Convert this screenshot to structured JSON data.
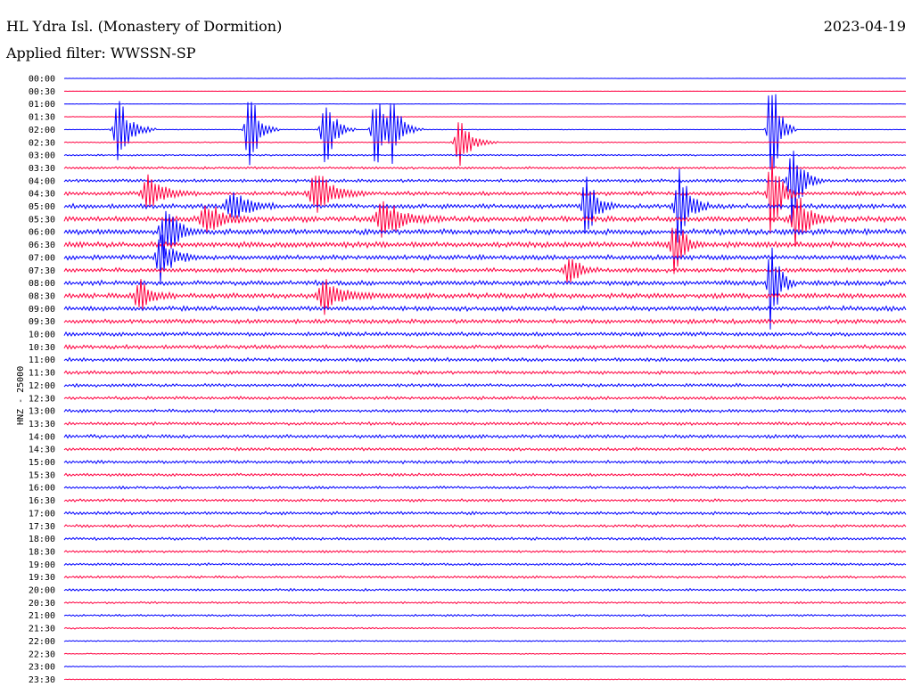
{
  "header": {
    "title": "HL Ydra Isl. (Monastery of Dormition)",
    "filter": "Applied filter: WWSSN-SP",
    "date": "2023-04-19",
    "ylabel": "HNZ - 25000"
  },
  "colors": {
    "trace_even": "#0000ff",
    "trace_odd": "#ff0040",
    "background": "#ffffff",
    "text": "#000000"
  },
  "chart_data": {
    "type": "line",
    "title": "HL Ydra Isl. (Monastery of Dormition)",
    "subtitle": "Applied filter: WWSSN-SP",
    "ylabel": "HNZ - 25000",
    "row_labels": [
      "00:00",
      "00:30",
      "01:00",
      "01:30",
      "02:00",
      "02:30",
      "03:00",
      "03:30",
      "04:00",
      "04:30",
      "05:00",
      "05:30",
      "06:00",
      "06:30",
      "07:00",
      "07:30",
      "08:00",
      "08:30",
      "09:00",
      "09:30",
      "10:00",
      "10:30",
      "11:00",
      "11:30",
      "12:00",
      "12:30",
      "13:00",
      "13:30",
      "14:00",
      "14:30",
      "15:00",
      "15:30",
      "16:00",
      "16:30",
      "17:00",
      "17:30",
      "18:00",
      "18:30",
      "19:00",
      "19:30",
      "20:00",
      "20:30",
      "21:00",
      "21:30",
      "22:00",
      "22:30",
      "23:00",
      "23:30"
    ],
    "row_noise": [
      0.03,
      0.03,
      0.05,
      0.05,
      0.08,
      0.12,
      0.2,
      0.3,
      0.4,
      0.5,
      0.6,
      0.7,
      0.7,
      0.7,
      0.6,
      0.55,
      0.6,
      0.65,
      0.6,
      0.55,
      0.5,
      0.5,
      0.45,
      0.45,
      0.4,
      0.4,
      0.4,
      0.4,
      0.45,
      0.4,
      0.4,
      0.35,
      0.35,
      0.35,
      0.4,
      0.35,
      0.35,
      0.3,
      0.3,
      0.3,
      0.3,
      0.25,
      0.25,
      0.2,
      0.15,
      0.12,
      0.1,
      0.1
    ],
    "events": [
      {
        "row": 4,
        "x": 0.065,
        "amp": 3.0,
        "width": 0.015
      },
      {
        "row": 9,
        "x": 0.1,
        "amp": 1.5,
        "width": 0.02
      },
      {
        "row": 12,
        "x": 0.12,
        "amp": 2.5,
        "width": 0.015
      },
      {
        "row": 14,
        "x": 0.115,
        "amp": 2.0,
        "width": 0.015
      },
      {
        "row": 17,
        "x": 0.09,
        "amp": 1.5,
        "width": 0.015
      },
      {
        "row": 4,
        "x": 0.22,
        "amp": 4.0,
        "width": 0.012
      },
      {
        "row": 10,
        "x": 0.2,
        "amp": 1.5,
        "width": 0.02
      },
      {
        "row": 11,
        "x": 0.17,
        "amp": 1.5,
        "width": 0.02
      },
      {
        "row": 4,
        "x": 0.31,
        "amp": 3.5,
        "width": 0.012
      },
      {
        "row": 9,
        "x": 0.3,
        "amp": 2.0,
        "width": 0.02
      },
      {
        "row": 17,
        "x": 0.31,
        "amp": 1.5,
        "width": 0.02
      },
      {
        "row": 4,
        "x": 0.37,
        "amp": 3.5,
        "width": 0.012
      },
      {
        "row": 4,
        "x": 0.39,
        "amp": 3.0,
        "width": 0.012
      },
      {
        "row": 11,
        "x": 0.38,
        "amp": 1.5,
        "width": 0.025
      },
      {
        "row": 5,
        "x": 0.47,
        "amp": 2.0,
        "width": 0.015
      },
      {
        "row": 10,
        "x": 0.62,
        "amp": 3.0,
        "width": 0.012
      },
      {
        "row": 15,
        "x": 0.6,
        "amp": 1.5,
        "width": 0.012
      },
      {
        "row": 10,
        "x": 0.73,
        "amp": 4.0,
        "width": 0.012
      },
      {
        "row": 13,
        "x": 0.725,
        "amp": 2.5,
        "width": 0.012
      },
      {
        "row": 4,
        "x": 0.84,
        "amp": 6.0,
        "width": 0.01
      },
      {
        "row": 9,
        "x": 0.84,
        "amp": 5.0,
        "width": 0.01
      },
      {
        "row": 16,
        "x": 0.84,
        "amp": 4.0,
        "width": 0.01
      },
      {
        "row": 8,
        "x": 0.865,
        "amp": 4.0,
        "width": 0.012
      },
      {
        "row": 11,
        "x": 0.87,
        "amp": 2.5,
        "width": 0.015
      }
    ]
  }
}
